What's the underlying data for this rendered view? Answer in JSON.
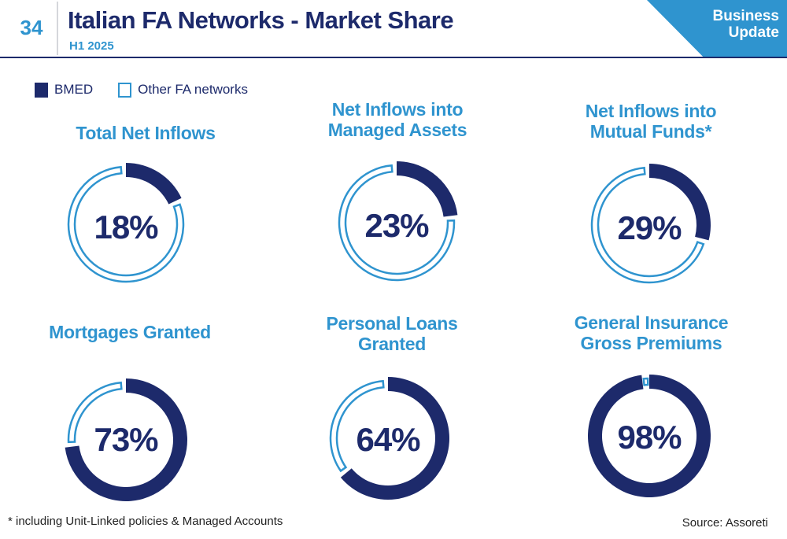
{
  "header": {
    "page_number": "34",
    "title": "Italian FA Networks - Market Share",
    "subtitle": "H1 2025",
    "section_tab": "Business Update"
  },
  "legend": {
    "bmed": "BMED",
    "other": "Other FA networks"
  },
  "colors": {
    "bmed": "#1d2a6b",
    "other": "#2f94cf"
  },
  "chart_data": [
    {
      "type": "pie",
      "title": "Total Net Inflows",
      "value_label": "18%",
      "slices": [
        {
          "name": "BMED",
          "value": 18
        },
        {
          "name": "Other FA networks",
          "value": 82
        }
      ]
    },
    {
      "type": "pie",
      "title": "Net Inflows into Managed Assets",
      "value_label": "23%",
      "slices": [
        {
          "name": "BMED",
          "value": 23
        },
        {
          "name": "Other FA networks",
          "value": 77
        }
      ]
    },
    {
      "type": "pie",
      "title": "Net Inflows into Mutual Funds*",
      "value_label": "29%",
      "slices": [
        {
          "name": "BMED",
          "value": 29
        },
        {
          "name": "Other FA networks",
          "value": 71
        }
      ]
    },
    {
      "type": "pie",
      "title": "Mortgages Granted",
      "value_label": "73%",
      "slices": [
        {
          "name": "BMED",
          "value": 73
        },
        {
          "name": "Other FA networks",
          "value": 27
        }
      ]
    },
    {
      "type": "pie",
      "title": "Personal Loans Granted",
      "value_label": "64%",
      "slices": [
        {
          "name": "BMED",
          "value": 64
        },
        {
          "name": "Other FA networks",
          "value": 36
        }
      ]
    },
    {
      "type": "pie",
      "title": "General Insurance Gross Premiums",
      "value_label": "98%",
      "slices": [
        {
          "name": "BMED",
          "value": 98
        },
        {
          "name": "Other FA networks",
          "value": 2
        }
      ]
    }
  ],
  "footnote": "* including Unit-Linked policies & Managed Accounts",
  "source": "Source: Assoreti"
}
